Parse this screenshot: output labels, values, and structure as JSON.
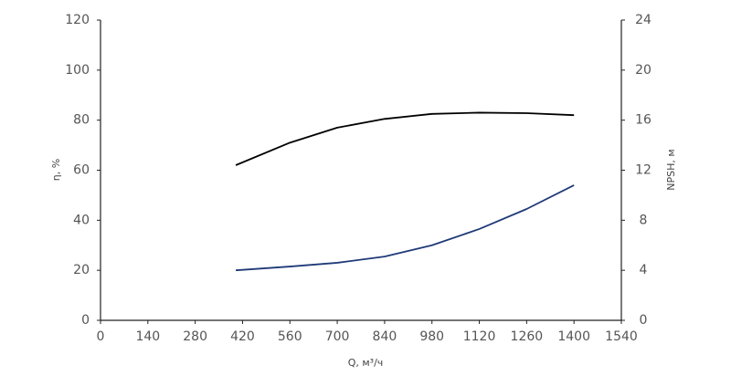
{
  "chart_data": {
    "type": "line",
    "x_label": "Q, м³/ч",
    "y_label": "η, %",
    "y2_label": "NPSH, м",
    "x": [
      400,
      560,
      700,
      840,
      980,
      1120,
      1260,
      1400
    ],
    "series": [
      {
        "name": "η",
        "color": "#000000",
        "values": [
          62,
          71,
          77,
          80.5,
          82.5,
          83,
          82.8,
          82
        ]
      },
      {
        "name": "NPSH",
        "color": "#1f3a78",
        "axis": "y2",
        "values": [
          4.0,
          4.3,
          4.6,
          5.1,
          6.0,
          7.3,
          8.9,
          10.8
        ]
      }
    ],
    "xlim": [
      0,
      1540
    ],
    "xticks": [
      0,
      140,
      280,
      420,
      560,
      700,
      840,
      980,
      1120,
      1260,
      1400,
      1540
    ],
    "ylim": [
      0,
      120
    ],
    "yticks": [
      0,
      20,
      40,
      60,
      80,
      100,
      120
    ],
    "y2lim": [
      0,
      24
    ],
    "y2ticks": [
      0,
      4,
      8,
      12,
      16,
      20,
      24
    ],
    "grid": false
  }
}
